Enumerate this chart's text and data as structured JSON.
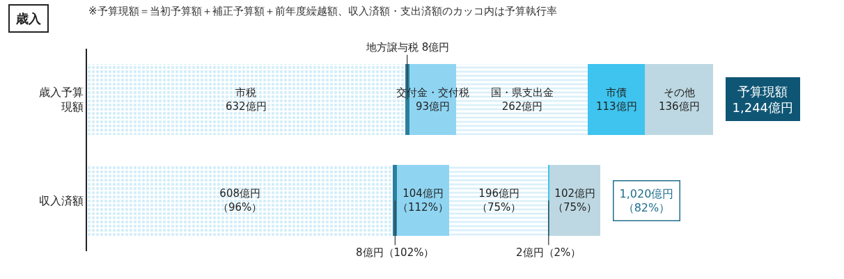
{
  "chart_data": {
    "type": "bar",
    "orientation": "horizontal",
    "stacked": true,
    "title": "歳入",
    "subtitle": "※予算現額＝当初予算額＋補正予算額＋前年度繰越額、収入済額・支出済額のカッコ内は予算執行率",
    "categories": [
      "歳入予算現額",
      "収入済額"
    ],
    "series": [
      {
        "color": "#a9def3",
        "values": [
          632,
          608
        ],
        "value_labels": [
          "市税632億円",
          "608億円（96%）"
        ]
      },
      {
        "color": "#2b7f9e",
        "values": [
          8,
          8
        ],
        "value_labels": [
          "地方譲与税 8億円",
          "8億円（102%）"
        ]
      },
      {
        "color": "#8fd5f2",
        "values": [
          93,
          104
        ],
        "value_labels": [
          "交付金・交付税93億円",
          "104億円（112%）"
        ]
      },
      {
        "color": "#b5e2f5",
        "values": [
          262,
          196
        ],
        "value_labels": [
          "国・県支出金262億円",
          "196億円（75%）"
        ]
      },
      {
        "color": "#3ec4ee",
        "values": [
          113,
          2
        ],
        "value_labels": [
          "市債113億円",
          "2億円（2%）"
        ]
      },
      {
        "color": "#bdd8e2",
        "values": [
          136,
          102
        ],
        "value_labels": [
          "その他136億円",
          "102億円（75%）"
        ]
      }
    ],
    "totals": [
      "予算現額1,244億円",
      "1,020億円（82%）"
    ]
  }
}
